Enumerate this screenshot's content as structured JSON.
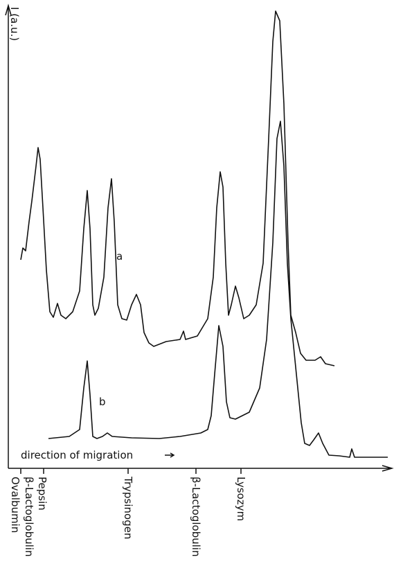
{
  "figure": {
    "y_label": "I (a.u.)",
    "traces": [
      {
        "label": "a"
      },
      {
        "label": "b"
      }
    ],
    "annotation": "direction of migration",
    "markers": [
      "Ovalbumin",
      "β-Lactoglobulin",
      "Pepsin",
      "Trypsinogen",
      "β-Lactoglobulin",
      "Lysozym"
    ]
  }
}
